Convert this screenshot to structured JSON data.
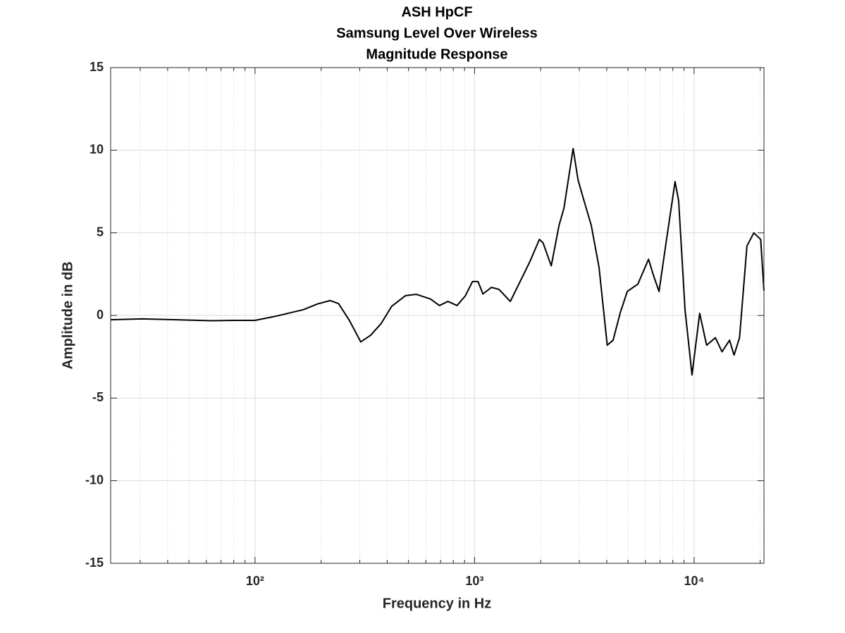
{
  "chart_data": {
    "type": "line",
    "title": [
      "ASH HpCF",
      "Samsung Level Over Wireless",
      "Magnitude Response"
    ],
    "x_label": "Frequency in Hz",
    "y_label": "Amplitude in dB",
    "x_scale": "log",
    "grid": true,
    "xlim": [
      22,
      20800
    ],
    "ylim": [
      -15,
      15
    ],
    "xticks": [
      {
        "value": 100,
        "label": "10²"
      },
      {
        "value": 1000,
        "label": "10³"
      },
      {
        "value": 10000,
        "label": "10⁴"
      }
    ],
    "xminorticks": [
      30,
      40,
      50,
      60,
      70,
      80,
      90,
      200,
      300,
      400,
      500,
      600,
      700,
      800,
      900,
      2000,
      3000,
      4000,
      5000,
      6000,
      7000,
      8000,
      9000,
      20000
    ],
    "yticks": [
      -15,
      -10,
      -5,
      0,
      5,
      10,
      15
    ],
    "x": [
      22,
      30.5,
      44,
      63.8,
      80,
      100,
      124,
      166,
      193,
      220,
      240,
      269,
      303,
      336,
      375,
      419,
      485,
      542,
      629,
      692,
      756,
      832,
      909,
      978,
      1037,
      1092,
      1193,
      1291,
      1455,
      1640,
      1792,
      1973,
      2050,
      2235,
      2425,
      2554,
      2811,
      2960,
      3150,
      3400,
      3690,
      4020,
      4275,
      4605,
      4960,
      5545,
      6200,
      6520,
      6920,
      7450,
      8190,
      8500,
      9090,
      9780,
      10600,
      11400,
      12500,
      13400,
      14500,
      15200,
      16100,
      17400,
      18700,
      20100,
      20800
    ],
    "series": [
      {
        "color": "#000000",
        "values": [
          -0.26,
          -0.21,
          -0.26,
          -0.32,
          -0.3,
          -0.3,
          -0.05,
          0.35,
          0.7,
          0.9,
          0.72,
          -0.3,
          -1.6,
          -1.2,
          -0.5,
          0.55,
          1.2,
          1.28,
          1.0,
          0.6,
          0.85,
          0.6,
          1.2,
          2.05,
          2.05,
          1.3,
          1.7,
          1.58,
          0.85,
          2.25,
          3.3,
          4.6,
          4.4,
          3.0,
          5.45,
          6.5,
          10.1,
          8.2,
          6.95,
          5.45,
          2.9,
          -1.8,
          -1.5,
          0.15,
          1.45,
          1.9,
          3.4,
          2.45,
          1.45,
          4.4,
          8.1,
          6.95,
          0.35,
          -3.6,
          0.13,
          -1.8,
          -1.35,
          -2.2,
          -1.5,
          -2.4,
          -1.35,
          4.2,
          5.0,
          4.6,
          1.5
        ]
      }
    ]
  }
}
